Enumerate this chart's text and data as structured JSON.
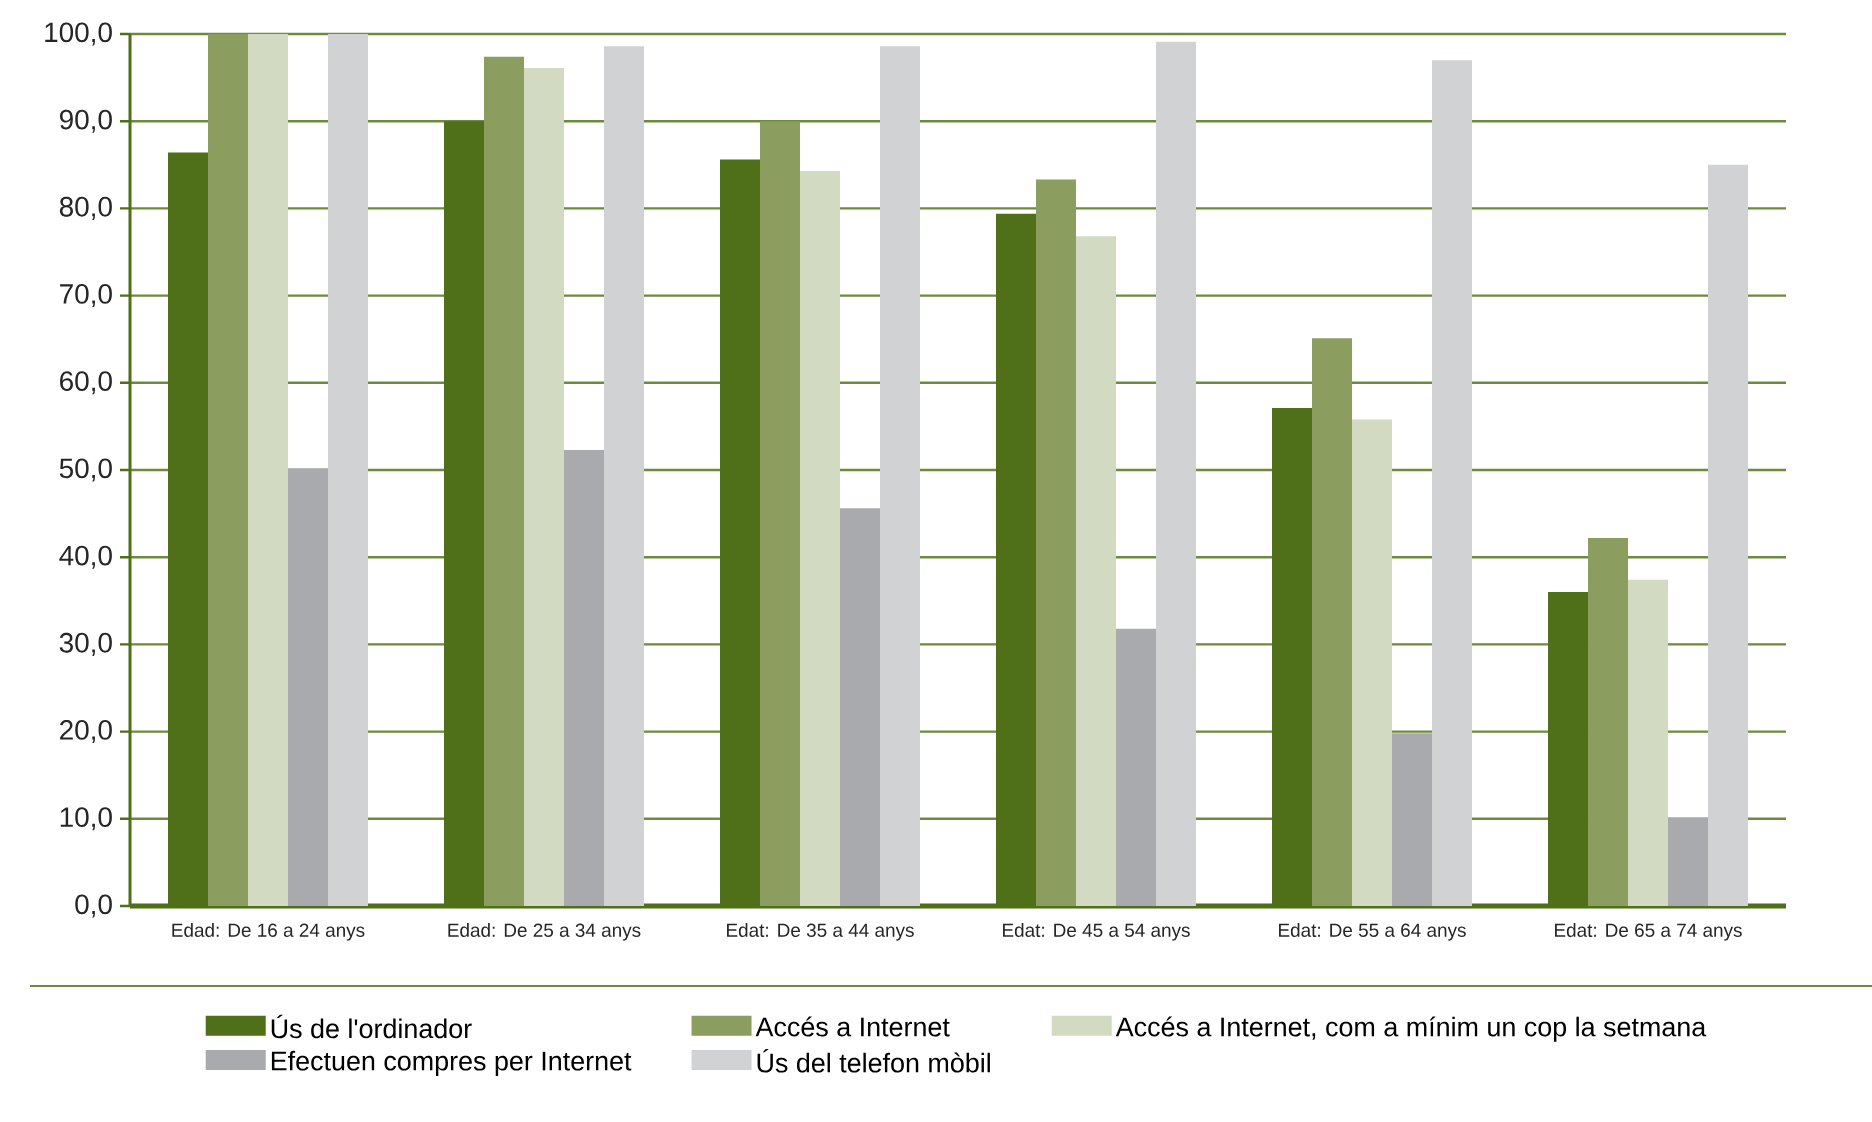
{
  "chart_data": {
    "type": "bar",
    "categories": [
      "Edad: De 16 a 24 anys",
      "Edad: De 25 a 34 anys",
      "Edat: De 35 a 44 anys",
      "Edat: De 45 a 54 anys",
      "Edat: De 55 a 64 anys",
      "Edat: De 65 a 74 anys"
    ],
    "series": [
      {
        "name": "Ús de l'ordinador",
        "color": "#4f6f19",
        "values": [
          86.4,
          90.0,
          85.6,
          79.4,
          57.1,
          36.0
        ]
      },
      {
        "name": "Accés a Internet",
        "color": "#8b9d5f",
        "values": [
          100.0,
          97.4,
          90.0,
          83.3,
          65.1,
          42.2
        ]
      },
      {
        "name": "Accés a Internet, com a mínim un cop la setmana",
        "color": "#d2dbc1",
        "values": [
          100.0,
          96.1,
          84.3,
          76.8,
          55.8,
          37.4
        ]
      },
      {
        "name": "Efectuen compres per Internet",
        "color": "#a9aaad",
        "values": [
          50.2,
          52.3,
          45.6,
          31.8,
          19.8,
          10.1
        ]
      },
      {
        "name": "Ús del telefon mòbil",
        "color": "#d1d2d4",
        "values": [
          100.0,
          98.6,
          98.6,
          99.1,
          97.0,
          85.0
        ]
      }
    ],
    "ylim": [
      0,
      100
    ],
    "yticks": [
      {
        "value": 0,
        "label": "0,0"
      },
      {
        "value": 10,
        "label": "10,0"
      },
      {
        "value": 20,
        "label": "20,0"
      },
      {
        "value": 30,
        "label": "30,0"
      },
      {
        "value": 40,
        "label": "40,0"
      },
      {
        "value": 50,
        "label": "50,0"
      },
      {
        "value": 60,
        "label": "60,0"
      },
      {
        "value": 70,
        "label": "70,0"
      },
      {
        "value": 80,
        "label": "80,0"
      },
      {
        "value": 90,
        "label": "90,0"
      },
      {
        "value": 100,
        "label": "100,0"
      }
    ],
    "grid": "y",
    "legend": "bottom"
  }
}
